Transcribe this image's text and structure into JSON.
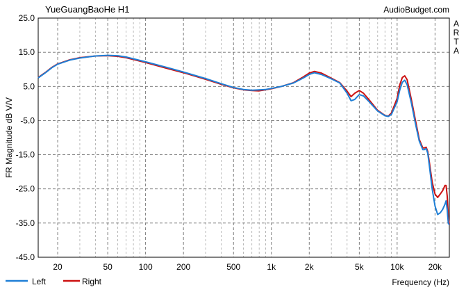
{
  "chart_data": {
    "type": "line",
    "title": "YueGuangBaoHe H1",
    "source": "AudioBudget.com",
    "side_label": [
      "A",
      "R",
      "T",
      "A"
    ],
    "xlabel": "Frequency (Hz)",
    "ylabel": "FR Magnitude dB V/V",
    "x_scale": "log",
    "xlim": [
      14,
      26000
    ],
    "ylim": [
      -45,
      25
    ],
    "grid": true,
    "legend_position": "bottom-left",
    "x_ticks": [
      {
        "value": 20,
        "label": "20"
      },
      {
        "value": 50,
        "label": "50"
      },
      {
        "value": 100,
        "label": "100"
      },
      {
        "value": 200,
        "label": "200"
      },
      {
        "value": 500,
        "label": "500"
      },
      {
        "value": 1000,
        "label": "1k"
      },
      {
        "value": 2000,
        "label": "2k"
      },
      {
        "value": 5000,
        "label": "5k"
      },
      {
        "value": 10000,
        "label": "10k"
      },
      {
        "value": 20000,
        "label": "20k"
      }
    ],
    "y_ticks": [
      {
        "value": 25,
        "label": "25.0"
      },
      {
        "value": 15,
        "label": "15.0"
      },
      {
        "value": 5,
        "label": "5.0"
      },
      {
        "value": -5,
        "label": "-5.0"
      },
      {
        "value": -15,
        "label": "-15.0"
      },
      {
        "value": -25,
        "label": "-25.0"
      },
      {
        "value": -35,
        "label": "-35.0"
      },
      {
        "value": -45,
        "label": "-45.0"
      }
    ],
    "series": [
      {
        "name": "Left",
        "color": "#1f7fd6",
        "points": [
          [
            14,
            7.5
          ],
          [
            16,
            9
          ],
          [
            18,
            10.5
          ],
          [
            20,
            11.5
          ],
          [
            25,
            12.7
          ],
          [
            30,
            13.3
          ],
          [
            40,
            13.9
          ],
          [
            50,
            14.1
          ],
          [
            60,
            14.0
          ],
          [
            70,
            13.6
          ],
          [
            100,
            12.2
          ],
          [
            150,
            10.5
          ],
          [
            200,
            9.2
          ],
          [
            300,
            7.3
          ],
          [
            400,
            5.8
          ],
          [
            500,
            4.7
          ],
          [
            600,
            4.1
          ],
          [
            700,
            3.9
          ],
          [
            800,
            4.0
          ],
          [
            900,
            4.1
          ],
          [
            1000,
            4.4
          ],
          [
            1200,
            5.0
          ],
          [
            1500,
            6.0
          ],
          [
            1800,
            7.5
          ],
          [
            2000,
            8.5
          ],
          [
            2200,
            9.0
          ],
          [
            2500,
            8.5
          ],
          [
            3000,
            7.2
          ],
          [
            3500,
            6.0
          ],
          [
            4000,
            3.0
          ],
          [
            4300,
            0.8
          ],
          [
            4600,
            1.2
          ],
          [
            5000,
            2.6
          ],
          [
            5400,
            2.2
          ],
          [
            6000,
            0.5
          ],
          [
            7000,
            -2.2
          ],
          [
            8000,
            -3.6
          ],
          [
            8500,
            -3.8
          ],
          [
            9000,
            -3.2
          ],
          [
            10000,
            0.5
          ],
          [
            10500,
            4.0
          ],
          [
            11000,
            6.2
          ],
          [
            11500,
            6.8
          ],
          [
            12000,
            5.5
          ],
          [
            13000,
            0
          ],
          [
            14000,
            -6
          ],
          [
            15000,
            -11
          ],
          [
            16000,
            -13.5
          ],
          [
            16500,
            -13.5
          ],
          [
            17000,
            -13.2
          ],
          [
            17500,
            -14.5
          ],
          [
            18000,
            -18
          ],
          [
            19000,
            -25
          ],
          [
            20000,
            -30
          ],
          [
            21000,
            -32.5
          ],
          [
            22000,
            -32
          ],
          [
            23000,
            -31
          ],
          [
            24000,
            -29.5
          ],
          [
            24500,
            -28.5
          ],
          [
            25000,
            -31
          ],
          [
            25500,
            -35
          ],
          [
            26000,
            -35.5
          ]
        ]
      },
      {
        "name": "Right",
        "color": "#cc1111",
        "points": [
          [
            14,
            7.6
          ],
          [
            16,
            9.1
          ],
          [
            18,
            10.6
          ],
          [
            20,
            11.6
          ],
          [
            25,
            12.8
          ],
          [
            30,
            13.4
          ],
          [
            40,
            13.9
          ],
          [
            50,
            14.0
          ],
          [
            60,
            13.8
          ],
          [
            70,
            13.4
          ],
          [
            100,
            12.0
          ],
          [
            150,
            10.2
          ],
          [
            200,
            9.0
          ],
          [
            300,
            7.1
          ],
          [
            400,
            5.6
          ],
          [
            500,
            4.6
          ],
          [
            600,
            4.0
          ],
          [
            700,
            3.8
          ],
          [
            800,
            3.7
          ],
          [
            900,
            4.0
          ],
          [
            1000,
            4.3
          ],
          [
            1200,
            5.0
          ],
          [
            1500,
            6.1
          ],
          [
            1800,
            7.8
          ],
          [
            2000,
            8.9
          ],
          [
            2200,
            9.4
          ],
          [
            2500,
            8.9
          ],
          [
            3000,
            7.4
          ],
          [
            3500,
            6.1
          ],
          [
            4000,
            3.6
          ],
          [
            4300,
            2.0
          ],
          [
            4600,
            3.0
          ],
          [
            5000,
            3.8
          ],
          [
            5400,
            3.0
          ],
          [
            6000,
            1.0
          ],
          [
            7000,
            -2.0
          ],
          [
            8000,
            -3.5
          ],
          [
            8500,
            -3.7
          ],
          [
            9000,
            -2.8
          ],
          [
            10000,
            1.5
          ],
          [
            10500,
            5.5
          ],
          [
            11000,
            7.6
          ],
          [
            11500,
            8.1
          ],
          [
            12000,
            7.0
          ],
          [
            13000,
            1.0
          ],
          [
            14000,
            -5
          ],
          [
            15000,
            -10.5
          ],
          [
            16000,
            -13
          ],
          [
            16500,
            -13
          ],
          [
            17000,
            -12.8
          ],
          [
            17500,
            -14
          ],
          [
            18000,
            -17
          ],
          [
            19000,
            -23
          ],
          [
            20000,
            -26.5
          ],
          [
            21000,
            -27.5
          ],
          [
            22000,
            -26.5
          ],
          [
            23000,
            -25.5
          ],
          [
            24000,
            -24
          ],
          [
            24500,
            -24
          ],
          [
            25000,
            -27
          ],
          [
            25500,
            -33
          ],
          [
            26000,
            -35.5
          ]
        ]
      }
    ]
  }
}
